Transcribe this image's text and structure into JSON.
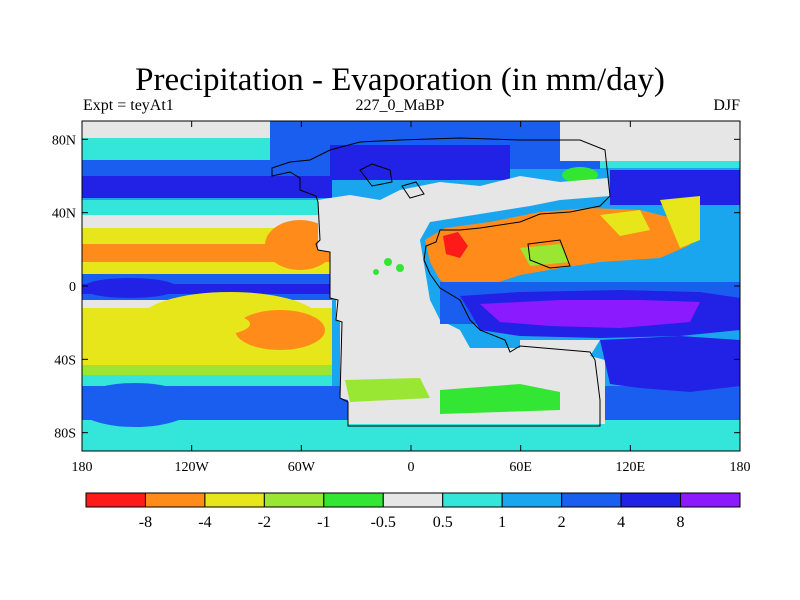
{
  "title": "Precipitation - Evaporation (in mm/day)",
  "subtitle_left": "Expt = teyAt1",
  "subtitle_center": "227_0_MaBP",
  "subtitle_right": "DJF",
  "map": {
    "lon_range": [
      -180,
      180
    ],
    "lat_range": [
      -90,
      90
    ],
    "x_ticks": [
      {
        "value": -180,
        "label": "180"
      },
      {
        "value": -120,
        "label": "120W"
      },
      {
        "value": -60,
        "label": "60W"
      },
      {
        "value": 0,
        "label": "0"
      },
      {
        "value": 60,
        "label": "60E"
      },
      {
        "value": 120,
        "label": "120E"
      },
      {
        "value": 180,
        "label": "180"
      }
    ],
    "y_ticks": [
      {
        "value": 80,
        "label": "80N"
      },
      {
        "value": 40,
        "label": "40N"
      },
      {
        "value": 0,
        "label": "0"
      },
      {
        "value": -40,
        "label": "40S"
      },
      {
        "value": -80,
        "label": "80S"
      }
    ]
  },
  "colorbar": {
    "colors": [
      "#ff1a1a",
      "#ff8c1a",
      "#e6e61a",
      "#99e633",
      "#33e633",
      "#e6e6e6",
      "#33e6d9",
      "#1aa6ee",
      "#1a5ef0",
      "#2222e6",
      "#8c1aff"
    ],
    "labels": [
      "-8",
      "-4",
      "-2",
      "-1",
      "-0.5",
      "0.5",
      "1",
      "2",
      "4",
      "8"
    ]
  }
}
